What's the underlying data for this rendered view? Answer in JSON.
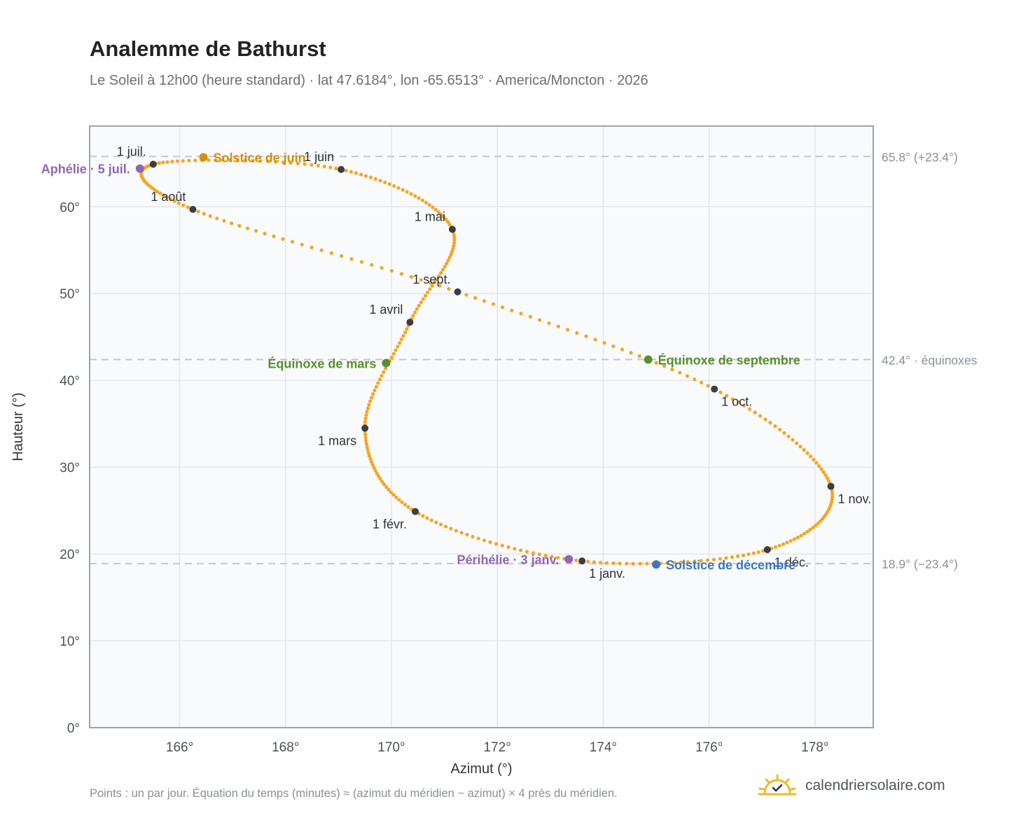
{
  "header": {
    "title": "Analemme de Bathurst",
    "subtitle": "Le Soleil à 12h00 (heure standard) · lat 47.6184°, lon -65.6513° · America/Moncton · 2026"
  },
  "footer": {
    "note": "Points : un par jour. Équation du temps (minutes) ≈ (azimut du méridien − azimut) × 4 près du méridien.",
    "brand": "calendriersolaire.com"
  },
  "colors": {
    "curve": "#f5a623",
    "month_marker": "#3a3d44",
    "solstice_june": "#d4900a",
    "solstice_december": "#3b78bb",
    "equinox": "#5a8f2e",
    "apsis": "#9066b3",
    "reference_line": "#c2c8d0",
    "plot_background": "#f8fafc",
    "plot_border": "#9aa3b0",
    "grid": "#e3e7ec",
    "brand_sun": "#f0b92a"
  },
  "icons": {
    "brand": "sun-check-icon"
  },
  "chart_data": {
    "type": "scatter",
    "xlabel": "Azimut (°)",
    "ylabel": "Hauteur (°)",
    "xlim": [
      164.3,
      179.1
    ],
    "ylim": [
      0,
      69.3
    ],
    "grid": true,
    "x_ticks": [
      166,
      168,
      170,
      172,
      174,
      176,
      178
    ],
    "y_ticks": [
      0,
      10,
      20,
      30,
      40,
      50,
      60
    ],
    "x_tick_labels": [
      "166°",
      "168°",
      "170°",
      "172°",
      "174°",
      "176°",
      "178°"
    ],
    "y_tick_labels": [
      "0°",
      "10°",
      "20°",
      "30°",
      "40°",
      "50°",
      "60°"
    ],
    "series": [
      {
        "points": [
          [
            173.6,
            19.2
          ],
          [
            170.45,
            24.9
          ],
          [
            169.5,
            34.5
          ],
          [
            170.35,
            46.7
          ],
          [
            171.15,
            57.4
          ],
          [
            169.05,
            64.3
          ],
          [
            165.5,
            64.9
          ],
          [
            166.25,
            59.7
          ],
          [
            171.25,
            50.2
          ],
          [
            176.1,
            39.0
          ],
          [
            178.3,
            27.8
          ],
          [
            177.1,
            20.5
          ]
        ]
      }
    ],
    "month_points": [
      {
        "label": "1 janv.",
        "x": 173.6,
        "y": 19.2,
        "label_pos": "below-right"
      },
      {
        "label": "1 févr.",
        "x": 170.45,
        "y": 24.9,
        "label_pos": "below-left"
      },
      {
        "label": "1 mars",
        "x": 169.5,
        "y": 34.5,
        "label_pos": "below-left"
      },
      {
        "label": "1 avril",
        "x": 170.35,
        "y": 46.7,
        "label_pos": "above-left"
      },
      {
        "label": "1 mai",
        "x": 171.15,
        "y": 57.4,
        "label_pos": "above-left"
      },
      {
        "label": "1 juin",
        "x": 169.05,
        "y": 64.3,
        "label_pos": "above-left"
      },
      {
        "label": "1 juil.",
        "x": 165.5,
        "y": 64.9,
        "label_pos": "above-left"
      },
      {
        "label": "1 août",
        "x": 166.25,
        "y": 59.7,
        "label_pos": "above-left"
      },
      {
        "label": "1 sept.",
        "x": 171.25,
        "y": 50.2,
        "label_pos": "above-left"
      },
      {
        "label": "1 oct.",
        "x": 176.1,
        "y": 39.0,
        "label_pos": "below-right"
      },
      {
        "label": "1 nov.",
        "x": 178.3,
        "y": 27.8,
        "label_pos": "below-right"
      },
      {
        "label": "1 déc.",
        "x": 177.1,
        "y": 20.5,
        "label_pos": "below-right"
      }
    ],
    "events": [
      {
        "label": "Solstice de juin",
        "x": 166.45,
        "y": 65.7,
        "color_key": "solstice_june",
        "label_pos": "right"
      },
      {
        "label": "Solstice de décembre",
        "x": 175.0,
        "y": 18.8,
        "color_key": "solstice_december",
        "label_pos": "right"
      },
      {
        "label": "Équinoxe de mars",
        "x": 169.9,
        "y": 42.0,
        "color_key": "equinox",
        "label_pos": "left"
      },
      {
        "label": "Équinoxe de septembre",
        "x": 174.85,
        "y": 42.4,
        "color_key": "equinox",
        "label_pos": "right"
      },
      {
        "label": "Aphélie · 5 juil.",
        "x": 165.25,
        "y": 64.4,
        "color_key": "apsis",
        "label_pos": "left"
      },
      {
        "label": "Périhélie · 3 janv.",
        "x": 173.35,
        "y": 19.4,
        "color_key": "apsis",
        "label_pos": "left"
      }
    ],
    "reference_lines": [
      {
        "y": 65.8,
        "label": "65.8° (+23.4°)"
      },
      {
        "y": 42.4,
        "label": "42.4° · équinoxes"
      },
      {
        "y": 18.9,
        "label": "18.9° (−23.4°)"
      }
    ]
  }
}
